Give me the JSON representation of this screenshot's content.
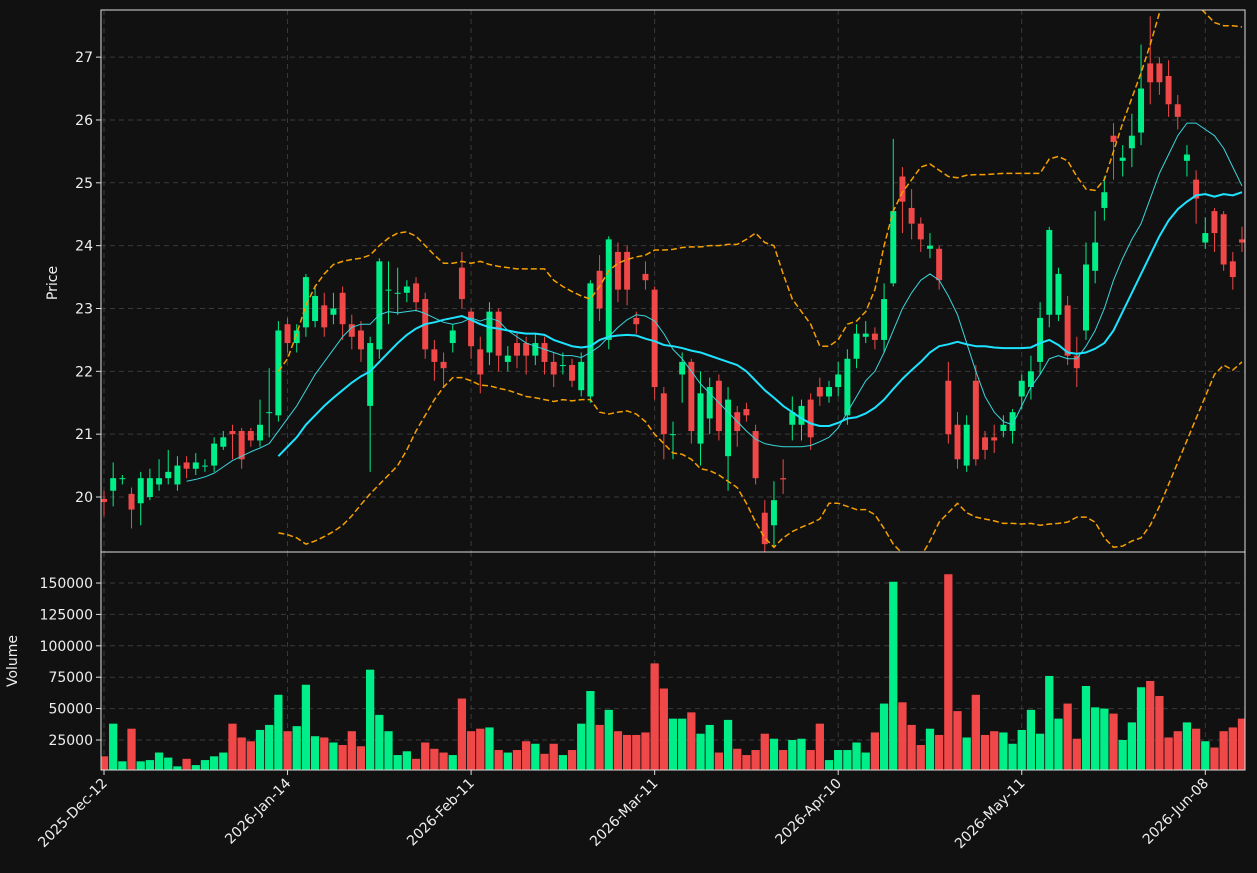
{
  "chart_data": {
    "type": "candlestick",
    "ylabel": "Price",
    "categories": [
      "2025-Dec-12",
      null,
      null,
      null,
      null,
      null,
      null,
      null,
      null,
      null,
      null,
      null,
      null,
      null,
      null,
      null,
      null,
      null,
      null,
      null,
      "2026-Jan-14",
      null,
      null,
      null,
      null,
      null,
      null,
      null,
      null,
      null,
      null,
      null,
      null,
      null,
      null,
      null,
      null,
      null,
      null,
      null,
      "2026-Feb-11",
      null,
      null,
      null,
      null,
      null,
      null,
      null,
      null,
      null,
      null,
      null,
      null,
      null,
      null,
      null,
      null,
      null,
      null,
      null,
      "2026-Mar-11",
      null,
      null,
      null,
      null,
      null,
      null,
      null,
      null,
      null,
      null,
      null,
      null,
      null,
      null,
      null,
      null,
      null,
      null,
      null,
      "2026-Apr-10",
      null,
      null,
      null,
      null,
      null,
      null,
      null,
      null,
      null,
      null,
      null,
      null,
      null,
      null,
      null,
      null,
      null,
      null,
      null,
      "2026-May-11",
      null,
      null,
      null,
      null,
      null,
      null,
      null,
      null,
      null,
      null,
      null,
      null,
      null,
      null,
      null,
      null,
      null,
      null,
      null,
      "2026-Jun-08",
      null,
      null,
      null,
      null
    ],
    "open": [
      19.97,
      20.1,
      20.3,
      20.05,
      19.9,
      20.0,
      20.2,
      20.3,
      20.2,
      20.55,
      20.45,
      20.5,
      20.5,
      20.8,
      21.05,
      21.05,
      21.05,
      20.9,
      21.35,
      21.3,
      22.75,
      22.45,
      22.7,
      22.8,
      23.05,
      22.9,
      23.25,
      22.75,
      22.65,
      21.45,
      22.35,
      23.3,
      23.25,
      23.25,
      23.4,
      23.15,
      22.35,
      22.15,
      22.45,
      23.65,
      22.95,
      22.35,
      22.3,
      22.95,
      22.15,
      22.45,
      22.45,
      22.25,
      22.45,
      22.15,
      22.1,
      22.1,
      21.7,
      21.6,
      23.6,
      22.5,
      23.9,
      23.9,
      22.85,
      23.55,
      23.3,
      21.65,
      21.0,
      21.95,
      22.15,
      20.85,
      21.25,
      21.85,
      20.65,
      21.35,
      21.4,
      21.05,
      19.75,
      19.55,
      20.3,
      21.15,
      21.15,
      21.55,
      21.75,
      21.6,
      21.75,
      21.3,
      22.2,
      22.55,
      22.6,
      22.5,
      23.4,
      25.1,
      24.6,
      24.35,
      23.95,
      23.95,
      21.85,
      21.15,
      20.5,
      21.85,
      20.95,
      20.95,
      21.05,
      21.05,
      21.6,
      21.75,
      22.15,
      22.9,
      22.9,
      23.05,
      22.25,
      22.65,
      23.6,
      24.6,
      25.75,
      25.35,
      25.55,
      25.8,
      26.9,
      26.9,
      26.7,
      26.25,
      25.35,
      25.05,
      24.05,
      24.55,
      24.5,
      23.75,
      24.1
    ],
    "high": [
      20.1,
      20.55,
      20.35,
      20.15,
      20.4,
      20.45,
      20.6,
      20.75,
      20.65,
      20.65,
      20.7,
      20.6,
      20.95,
      21.05,
      21.15,
      21.1,
      21.1,
      21.55,
      22.05,
      22.8,
      22.85,
      22.75,
      23.55,
      23.35,
      23.25,
      23.25,
      23.35,
      22.9,
      22.8,
      22.55,
      23.8,
      23.75,
      23.65,
      23.45,
      23.5,
      23.25,
      22.5,
      22.3,
      22.75,
      23.9,
      23.0,
      22.55,
      23.1,
      23.0,
      22.4,
      22.6,
      22.55,
      22.6,
      22.55,
      22.3,
      22.3,
      22.2,
      22.3,
      23.45,
      23.85,
      24.15,
      24.05,
      24.0,
      22.95,
      23.75,
      23.35,
      21.75,
      21.2,
      22.3,
      22.2,
      22.0,
      21.9,
      21.95,
      21.75,
      21.45,
      21.5,
      21.15,
      19.95,
      20.25,
      20.6,
      21.6,
      21.55,
      21.65,
      21.9,
      21.85,
      22.15,
      22.35,
      22.75,
      22.8,
      22.7,
      23.4,
      25.7,
      25.25,
      24.9,
      24.45,
      24.2,
      24.0,
      22.15,
      21.35,
      21.3,
      22.1,
      21.05,
      21.15,
      21.3,
      21.4,
      21.95,
      22.25,
      23.1,
      24.3,
      23.65,
      23.2,
      22.55,
      24.05,
      24.55,
      25.1,
      25.95,
      25.6,
      26.1,
      27.2,
      27.65,
      27.0,
      26.95,
      26.4,
      25.6,
      25.2,
      24.45,
      24.6,
      24.55,
      23.9,
      24.3
    ],
    "low": [
      19.7,
      19.85,
      20.2,
      19.5,
      19.55,
      19.95,
      20.1,
      20.2,
      20.1,
      20.3,
      20.35,
      20.4,
      20.4,
      20.75,
      20.6,
      20.45,
      20.8,
      20.8,
      20.95,
      21.2,
      22.3,
      22.3,
      22.55,
      22.7,
      22.55,
      22.75,
      22.5,
      22.35,
      22.15,
      20.4,
      22.2,
      22.75,
      22.9,
      23.1,
      22.95,
      22.2,
      21.85,
      21.75,
      22.3,
      23.0,
      22.2,
      21.65,
      22.1,
      22.0,
      22.0,
      22.05,
      21.95,
      22.1,
      21.95,
      21.75,
      21.95,
      21.75,
      21.6,
      21.5,
      22.8,
      22.35,
      23.1,
      23.05,
      22.6,
      23.3,
      21.55,
      20.6,
      20.6,
      21.5,
      20.85,
      20.5,
      21.0,
      20.9,
      20.1,
      20.8,
      21.2,
      20.2,
      19.1,
      19.2,
      20.05,
      20.9,
      20.9,
      20.75,
      21.45,
      21.5,
      21.6,
      21.15,
      22.05,
      22.45,
      22.35,
      22.3,
      23.35,
      24.2,
      24.1,
      23.9,
      23.8,
      23.3,
      20.85,
      20.45,
      20.4,
      20.5,
      20.6,
      20.7,
      20.95,
      20.85,
      21.4,
      21.55,
      21.95,
      22.7,
      22.8,
      22.1,
      21.75,
      22.5,
      23.4,
      24.4,
      25.05,
      25.1,
      25.25,
      25.6,
      26.25,
      26.4,
      26.05,
      25.85,
      25.1,
      24.35,
      23.95,
      23.9,
      23.6,
      23.3,
      23.9
    ],
    "close": [
      19.92,
      20.3,
      20.3,
      19.8,
      20.3,
      20.3,
      20.3,
      20.4,
      20.5,
      20.45,
      20.55,
      20.5,
      20.85,
      20.95,
      21.0,
      20.6,
      20.9,
      21.15,
      21.35,
      22.65,
      22.45,
      22.65,
      23.5,
      23.2,
      22.7,
      23.0,
      22.75,
      22.55,
      22.35,
      22.45,
      23.75,
      23.3,
      23.25,
      23.35,
      23.1,
      22.35,
      22.15,
      22.05,
      22.65,
      23.15,
      22.4,
      21.95,
      22.95,
      22.25,
      22.25,
      22.25,
      22.25,
      22.45,
      22.15,
      21.95,
      22.1,
      21.85,
      22.15,
      23.4,
      23.0,
      24.1,
      23.3,
      23.3,
      22.75,
      23.45,
      21.75,
      21.0,
      21.0,
      22.15,
      21.05,
      21.65,
      21.75,
      21.05,
      21.55,
      21.05,
      21.3,
      20.3,
      19.25,
      19.95,
      20.28,
      21.35,
      21.45,
      20.95,
      21.6,
      21.75,
      21.95,
      22.2,
      22.6,
      22.6,
      22.5,
      23.15,
      24.55,
      24.7,
      24.35,
      24.1,
      24.0,
      23.45,
      21.0,
      20.6,
      21.15,
      20.6,
      20.75,
      20.9,
      21.15,
      21.35,
      21.85,
      22.0,
      22.85,
      24.25,
      23.55,
      22.25,
      22.05,
      23.7,
      24.05,
      24.85,
      25.65,
      25.4,
      25.75,
      26.5,
      26.6,
      26.6,
      26.25,
      26.05,
      25.45,
      24.75,
      24.2,
      24.2,
      23.7,
      23.5,
      24.05
    ],
    "up_color": "#00ee88",
    "down_color": "#f04848",
    "ylim": [
      19.125,
      27.75
    ],
    "yticks": [
      20,
      21,
      22,
      23,
      24,
      25,
      26,
      27
    ],
    "grid": true,
    "lines": [
      {
        "color": "#39d5dc",
        "width": 1,
        "dashed": false,
        "values": [
          null,
          null,
          null,
          null,
          null,
          null,
          null,
          null,
          null,
          20.25,
          20.28,
          20.32,
          20.38,
          20.48,
          20.58,
          20.65,
          20.72,
          20.78,
          20.85,
          21.05,
          21.25,
          21.45,
          21.7,
          21.95,
          22.15,
          22.35,
          22.55,
          22.7,
          22.75,
          22.75,
          22.9,
          22.95,
          22.93,
          22.95,
          22.97,
          22.92,
          22.85,
          22.78,
          22.75,
          22.78,
          22.85,
          22.8,
          22.85,
          22.8,
          22.65,
          22.55,
          22.45,
          22.4,
          22.35,
          22.3,
          22.25,
          22.25,
          22.22,
          22.3,
          22.4,
          22.55,
          22.7,
          22.82,
          22.9,
          22.88,
          22.8,
          22.6,
          22.35,
          22.2,
          22.0,
          21.8,
          21.65,
          21.5,
          21.35,
          21.2,
          21.05,
          20.92,
          20.85,
          20.82,
          20.8,
          20.8,
          20.8,
          20.82,
          20.88,
          20.95,
          21.1,
          21.35,
          21.6,
          21.85,
          22.0,
          22.3,
          22.65,
          23.0,
          23.25,
          23.45,
          23.55,
          23.45,
          23.2,
          22.9,
          22.45,
          22.0,
          21.6,
          21.35,
          21.2,
          21.15,
          21.45,
          21.75,
          21.95,
          22.2,
          22.25,
          22.2,
          22.2,
          22.4,
          22.65,
          23.0,
          23.45,
          23.8,
          24.1,
          24.35,
          24.75,
          25.15,
          25.45,
          25.75,
          25.95,
          25.95,
          25.85,
          25.75,
          25.55,
          25.25,
          24.95
        ]
      },
      {
        "color": "#1ee3ff",
        "width": 2,
        "dashed": false,
        "values": [
          null,
          null,
          null,
          null,
          null,
          null,
          null,
          null,
          null,
          null,
          null,
          null,
          null,
          null,
          null,
          null,
          null,
          null,
          null,
          20.65,
          20.8,
          20.95,
          21.15,
          21.3,
          21.45,
          21.58,
          21.7,
          21.82,
          21.92,
          22.0,
          22.15,
          22.3,
          22.45,
          22.58,
          22.68,
          22.75,
          22.78,
          22.82,
          22.85,
          22.88,
          22.82,
          22.75,
          22.7,
          22.68,
          22.65,
          22.62,
          22.6,
          22.6,
          22.58,
          22.5,
          22.45,
          22.4,
          22.38,
          22.4,
          22.5,
          22.55,
          22.57,
          22.58,
          22.57,
          22.52,
          22.48,
          22.42,
          22.4,
          22.37,
          22.33,
          22.3,
          22.25,
          22.2,
          22.15,
          22.1,
          22.0,
          21.85,
          21.7,
          21.58,
          21.45,
          21.35,
          21.25,
          21.17,
          21.13,
          21.13,
          21.18,
          21.25,
          21.27,
          21.33,
          21.42,
          21.55,
          21.72,
          21.88,
          22.02,
          22.15,
          22.3,
          22.4,
          22.43,
          22.47,
          22.43,
          22.4,
          22.4,
          22.38,
          22.37,
          22.37,
          22.37,
          22.38,
          22.45,
          22.5,
          22.42,
          22.3,
          22.28,
          22.3,
          22.36,
          22.45,
          22.65,
          22.95,
          23.25,
          23.55,
          23.85,
          24.15,
          24.4,
          24.58,
          24.7,
          24.8,
          24.82,
          24.78,
          24.82,
          24.8,
          24.85
        ]
      },
      {
        "color": "#f5a000",
        "width": 1.5,
        "dashed": true,
        "values": [
          null,
          null,
          null,
          null,
          null,
          null,
          null,
          null,
          null,
          null,
          null,
          null,
          null,
          null,
          null,
          null,
          null,
          null,
          null,
          22.0,
          22.2,
          22.6,
          23.05,
          23.35,
          23.55,
          23.7,
          23.75,
          23.78,
          23.8,
          23.85,
          24.0,
          24.12,
          24.2,
          24.22,
          24.15,
          24.0,
          23.85,
          23.72,
          23.72,
          23.75,
          23.72,
          23.75,
          23.7,
          23.67,
          23.65,
          23.63,
          23.63,
          23.63,
          23.63,
          23.45,
          23.35,
          23.27,
          23.2,
          23.15,
          23.35,
          23.6,
          23.72,
          23.78,
          23.82,
          23.85,
          23.93,
          23.93,
          23.94,
          23.97,
          23.98,
          23.98,
          24.0,
          24.0,
          24.02,
          24.02,
          24.1,
          24.2,
          24.05,
          24.0,
          23.55,
          23.15,
          22.95,
          22.75,
          22.4,
          22.4,
          22.5,
          22.75,
          22.8,
          22.95,
          23.3,
          24.0,
          24.55,
          24.85,
          25.05,
          25.25,
          25.3,
          25.2,
          25.1,
          25.08,
          25.12,
          25.13,
          25.13,
          25.14,
          25.15,
          25.15,
          25.15,
          25.15,
          25.15,
          25.38,
          25.42,
          25.35,
          25.1,
          24.9,
          24.88,
          25.05,
          25.5,
          25.95,
          26.35,
          26.75,
          27.2,
          27.7,
          27.95,
          28.0,
          27.95,
          27.85,
          27.7,
          27.55,
          27.5,
          27.5,
          27.48
        ]
      },
      {
        "color": "#f5a000",
        "width": 1.5,
        "dashed": true,
        "values": [
          null,
          null,
          null,
          null,
          null,
          null,
          null,
          null,
          null,
          null,
          null,
          null,
          null,
          null,
          null,
          null,
          null,
          null,
          null,
          19.43,
          19.4,
          19.35,
          19.25,
          19.3,
          19.37,
          19.45,
          19.55,
          19.7,
          19.88,
          20.05,
          20.2,
          20.35,
          20.5,
          20.75,
          21.05,
          21.3,
          21.55,
          21.75,
          21.9,
          21.9,
          21.85,
          21.78,
          21.77,
          21.73,
          21.7,
          21.65,
          21.6,
          21.58,
          21.55,
          21.52,
          21.55,
          21.53,
          21.55,
          21.55,
          21.35,
          21.32,
          21.35,
          21.37,
          21.32,
          21.2,
          21.0,
          20.85,
          20.7,
          20.68,
          20.6,
          20.45,
          20.42,
          20.35,
          20.25,
          20.15,
          19.9,
          19.6,
          19.35,
          19.2,
          19.35,
          19.45,
          19.52,
          19.58,
          19.65,
          19.9,
          19.9,
          19.85,
          19.8,
          19.8,
          19.72,
          19.5,
          19.25,
          19.1,
          19.05,
          19.05,
          19.3,
          19.6,
          19.75,
          19.9,
          19.75,
          19.68,
          19.65,
          19.62,
          19.58,
          19.58,
          19.57,
          19.58,
          19.55,
          19.57,
          19.58,
          19.6,
          19.68,
          19.68,
          19.6,
          19.35,
          19.2,
          19.22,
          19.3,
          19.35,
          19.55,
          19.85,
          20.2,
          20.55,
          20.9,
          21.25,
          21.6,
          21.95,
          22.1,
          22.02,
          22.15
        ]
      }
    ],
    "volume": {
      "ylabel": "Volume",
      "values": [
        12000,
        38000,
        8000,
        34000,
        8000,
        9000,
        15000,
        11000,
        4000,
        10000,
        5000,
        9000,
        12000,
        15000,
        38000,
        27000,
        24000,
        33000,
        37000,
        61000,
        32000,
        36000,
        69000,
        28000,
        27000,
        23000,
        21000,
        32000,
        20000,
        81000,
        45000,
        32000,
        13000,
        16000,
        10000,
        23000,
        18000,
        15000,
        13000,
        58000,
        32000,
        34000,
        35000,
        17000,
        15000,
        17000,
        24000,
        22000,
        14000,
        22000,
        13000,
        17000,
        38000,
        64000,
        37000,
        49000,
        32000,
        29000,
        29000,
        31000,
        86000,
        66000,
        42000,
        42000,
        47000,
        30000,
        37000,
        15000,
        41000,
        18000,
        13000,
        17000,
        30000,
        26000,
        17000,
        25000,
        26000,
        17000,
        38000,
        9000,
        17000,
        17000,
        23000,
        15000,
        31000,
        54000,
        151000,
        55000,
        37000,
        21000,
        34000,
        29000,
        157000,
        48000,
        27000,
        61000,
        29000,
        32000,
        31000,
        22000,
        33000,
        49000,
        30000,
        76000,
        42000,
        54000,
        26000,
        68000,
        51000,
        50000,
        46000,
        25000,
        39000,
        67000,
        72000,
        60000,
        27000,
        32000,
        39000,
        34000,
        24000,
        19000,
        32000,
        35000,
        42000
      ],
      "ylim": [
        1100,
        174700
      ],
      "yticks": [
        25000,
        50000,
        75000,
        100000,
        125000,
        150000
      ]
    }
  }
}
